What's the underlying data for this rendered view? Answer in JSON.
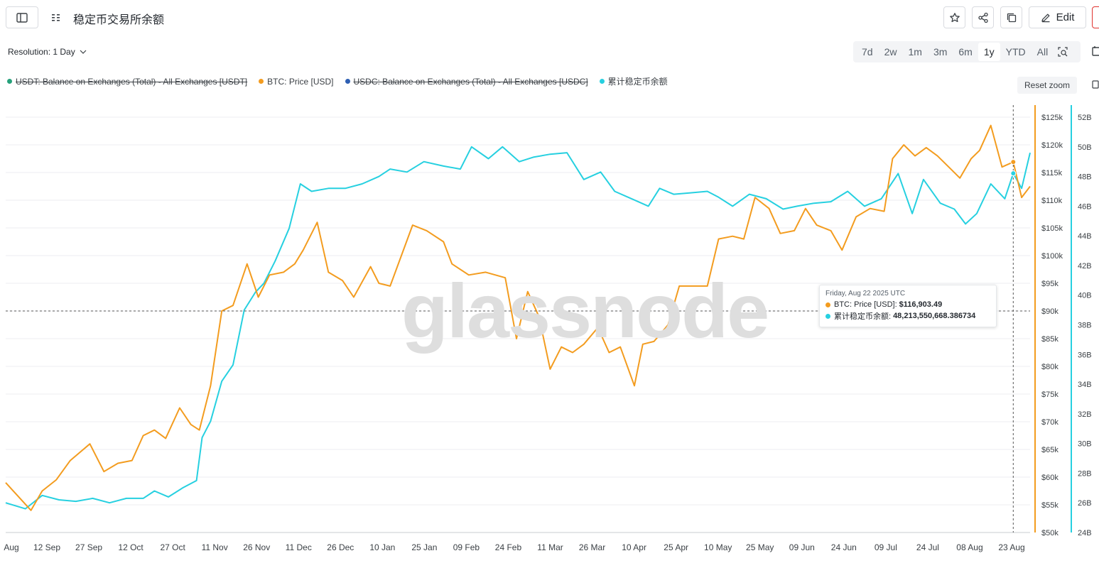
{
  "header": {
    "title": "稳定币交易所余额",
    "edit_label": "Edit",
    "icons": [
      "sidebar-toggle-icon",
      "drag-handle-icon",
      "star-icon",
      "share-icon",
      "duplicate-icon",
      "pencil-icon"
    ]
  },
  "controls": {
    "resolution_label": "Resolution: 1 Day",
    "ranges": [
      "7d",
      "2w",
      "1m",
      "3m",
      "6m",
      "1y",
      "YTD",
      "All"
    ],
    "active_range": "1y",
    "reset_zoom": "Reset zoom"
  },
  "legend": [
    {
      "label": "USDT: Balance on Exchanges (Total) - All Exchanges [USDT]",
      "color": "#26a17b",
      "hidden": true
    },
    {
      "label": "BTC: Price [USD]",
      "color": "#f39c1f",
      "hidden": false
    },
    {
      "label": "USDC: Balance on Exchanges (Total) - All Exchanges [USDC]",
      "color": "#2e5fb3",
      "hidden": true
    },
    {
      "label": "累计稳定币余额",
      "color": "#26d0e0",
      "hidden": false
    }
  ],
  "watermark": "glassnode",
  "tooltip": {
    "date": "Friday, Aug 22 2025 UTC",
    "rows": [
      {
        "label": "BTC: Price [USD]:",
        "value": "$116,903.49",
        "color": "#f39c1f"
      },
      {
        "label": "累计稳定币余额:",
        "value": "48,213,550,668.386734",
        "color": "#26d0e0"
      }
    ]
  },
  "chart_data": {
    "type": "line",
    "x_tick_labels": [
      "Aug",
      "12 Sep",
      "27 Sep",
      "12 Oct",
      "27 Oct",
      "11 Nov",
      "26 Nov",
      "11 Dec",
      "26 Dec",
      "10 Jan",
      "25 Jan",
      "09 Feb",
      "24 Feb",
      "11 Mar",
      "26 Mar",
      "10 Apr",
      "25 Apr",
      "10 May",
      "25 May",
      "09 Jun",
      "24 Jun",
      "09 Jul",
      "24 Jul",
      "08 Aug",
      "23 Aug"
    ],
    "x_range": [
      "2024-08-28",
      "2025-08-28"
    ],
    "y_left": {
      "label": "",
      "ticks": [
        "$50k",
        "$55k",
        "$60k",
        "$65k",
        "$70k",
        "$75k",
        "$80k",
        "$85k",
        "$90k",
        "$95k",
        "$100k",
        "$105k",
        "$110k",
        "$115k",
        "$120k",
        "$125k"
      ],
      "range": [
        50000,
        125000
      ],
      "color": "#f39c1f"
    },
    "y_right": {
      "label": "",
      "ticks": [
        "24B",
        "26B",
        "28B",
        "30B",
        "32B",
        "34B",
        "36B",
        "38B",
        "40B",
        "42B",
        "44B",
        "46B",
        "48B",
        "50B",
        "52B"
      ],
      "range": [
        24,
        52
      ],
      "color": "#26d0e0"
    },
    "grid": "horizontal",
    "series": [
      {
        "name": "BTC: Price [USD]",
        "axis": "left",
        "color": "#f39c1f",
        "points": [
          [
            "2024-08-28",
            59000
          ],
          [
            "2024-09-06",
            54000
          ],
          [
            "2024-09-10",
            57500
          ],
          [
            "2024-09-15",
            59500
          ],
          [
            "2024-09-20",
            63000
          ],
          [
            "2024-09-27",
            66000
          ],
          [
            "2024-10-02",
            61000
          ],
          [
            "2024-10-07",
            62500
          ],
          [
            "2024-10-12",
            63000
          ],
          [
            "2024-10-16",
            67500
          ],
          [
            "2024-10-20",
            68500
          ],
          [
            "2024-10-24",
            67000
          ],
          [
            "2024-10-29",
            72500
          ],
          [
            "2024-11-02",
            69500
          ],
          [
            "2024-11-05",
            68500
          ],
          [
            "2024-11-09",
            76500
          ],
          [
            "2024-11-13",
            90000
          ],
          [
            "2024-11-17",
            91000
          ],
          [
            "2024-11-22",
            98500
          ],
          [
            "2024-11-26",
            92500
          ],
          [
            "2024-11-30",
            96500
          ],
          [
            "2024-12-05",
            97000
          ],
          [
            "2024-12-09",
            98500
          ],
          [
            "2024-12-12",
            101000
          ],
          [
            "2024-12-17",
            106000
          ],
          [
            "2024-12-21",
            97000
          ],
          [
            "2024-12-26",
            95500
          ],
          [
            "2024-12-30",
            92500
          ],
          [
            "2025-01-05",
            98000
          ],
          [
            "2025-01-08",
            95000
          ],
          [
            "2025-01-12",
            94500
          ],
          [
            "2025-01-16",
            100000
          ],
          [
            "2025-01-20",
            105500
          ],
          [
            "2025-01-25",
            104500
          ],
          [
            "2025-01-31",
            102500
          ],
          [
            "2025-02-03",
            98500
          ],
          [
            "2025-02-09",
            96500
          ],
          [
            "2025-02-15",
            97000
          ],
          [
            "2025-02-22",
            96000
          ],
          [
            "2025-02-26",
            85000
          ],
          [
            "2025-03-02",
            93500
          ],
          [
            "2025-03-06",
            89000
          ],
          [
            "2025-03-10",
            79500
          ],
          [
            "2025-03-14",
            83500
          ],
          [
            "2025-03-18",
            82500
          ],
          [
            "2025-03-22",
            84000
          ],
          [
            "2025-03-27",
            87000
          ],
          [
            "2025-03-31",
            82500
          ],
          [
            "2025-04-04",
            83500
          ],
          [
            "2025-04-09",
            76500
          ],
          [
            "2025-04-12",
            84000
          ],
          [
            "2025-04-16",
            84500
          ],
          [
            "2025-04-21",
            87500
          ],
          [
            "2025-04-25",
            94500
          ],
          [
            "2025-04-30",
            94500
          ],
          [
            "2025-05-05",
            94500
          ],
          [
            "2025-05-09",
            103000
          ],
          [
            "2025-05-14",
            103500
          ],
          [
            "2025-05-18",
            103000
          ],
          [
            "2025-05-22",
            110500
          ],
          [
            "2025-05-27",
            108500
          ],
          [
            "2025-05-31",
            104000
          ],
          [
            "2025-06-05",
            104500
          ],
          [
            "2025-06-09",
            108500
          ],
          [
            "2025-06-13",
            105500
          ],
          [
            "2025-06-18",
            104500
          ],
          [
            "2025-06-22",
            101000
          ],
          [
            "2025-06-27",
            107000
          ],
          [
            "2025-07-02",
            108500
          ],
          [
            "2025-07-07",
            108000
          ],
          [
            "2025-07-10",
            117500
          ],
          [
            "2025-07-14",
            120000
          ],
          [
            "2025-07-18",
            118000
          ],
          [
            "2025-07-22",
            119500
          ],
          [
            "2025-07-26",
            118000
          ],
          [
            "2025-07-31",
            115500
          ],
          [
            "2025-08-03",
            114000
          ],
          [
            "2025-08-07",
            117500
          ],
          [
            "2025-08-10",
            119000
          ],
          [
            "2025-08-14",
            123500
          ],
          [
            "2025-08-18",
            116000
          ],
          [
            "2025-08-22",
            116903.49
          ],
          [
            "2025-08-25",
            110500
          ],
          [
            "2025-08-28",
            112500
          ]
        ]
      },
      {
        "name": "累计稳定币余额",
        "axis": "right",
        "color": "#26d0e0",
        "points_billions": [
          [
            "2024-08-28",
            26.0
          ],
          [
            "2024-09-04",
            25.6
          ],
          [
            "2024-09-10",
            26.5
          ],
          [
            "2024-09-16",
            26.2
          ],
          [
            "2024-09-22",
            26.1
          ],
          [
            "2024-09-28",
            26.3
          ],
          [
            "2024-10-04",
            26.0
          ],
          [
            "2024-10-10",
            26.3
          ],
          [
            "2024-10-16",
            26.3
          ],
          [
            "2024-10-20",
            26.8
          ],
          [
            "2024-10-25",
            26.4
          ],
          [
            "2024-10-30",
            27.0
          ],
          [
            "2024-11-04",
            27.5
          ],
          [
            "2024-11-06",
            30.4
          ],
          [
            "2024-11-09",
            31.5
          ],
          [
            "2024-11-13",
            34.2
          ],
          [
            "2024-11-17",
            35.3
          ],
          [
            "2024-11-21",
            39.0
          ],
          [
            "2024-11-25",
            40.2
          ],
          [
            "2024-11-28",
            40.8
          ],
          [
            "2024-12-02",
            42.3
          ],
          [
            "2024-12-07",
            44.5
          ],
          [
            "2024-12-11",
            47.5
          ],
          [
            "2024-12-15",
            47.0
          ],
          [
            "2024-12-21",
            47.2
          ],
          [
            "2024-12-27",
            47.2
          ],
          [
            "2025-01-02",
            47.5
          ],
          [
            "2025-01-08",
            48.0
          ],
          [
            "2025-01-12",
            48.5
          ],
          [
            "2025-01-18",
            48.3
          ],
          [
            "2025-01-24",
            49.0
          ],
          [
            "2025-01-31",
            48.7
          ],
          [
            "2025-02-06",
            48.5
          ],
          [
            "2025-02-10",
            50.0
          ],
          [
            "2025-02-16",
            49.2
          ],
          [
            "2025-02-21",
            50.0
          ],
          [
            "2025-02-27",
            49.0
          ],
          [
            "2025-03-04",
            49.3
          ],
          [
            "2025-03-10",
            49.5
          ],
          [
            "2025-03-16",
            49.6
          ],
          [
            "2025-03-22",
            47.8
          ],
          [
            "2025-03-28",
            48.3
          ],
          [
            "2025-04-02",
            47.0
          ],
          [
            "2025-04-08",
            46.5
          ],
          [
            "2025-04-14",
            46.0
          ],
          [
            "2025-04-18",
            47.2
          ],
          [
            "2025-04-23",
            46.8
          ],
          [
            "2025-04-29",
            46.9
          ],
          [
            "2025-05-05",
            47.0
          ],
          [
            "2025-05-09",
            46.6
          ],
          [
            "2025-05-14",
            46.0
          ],
          [
            "2025-05-20",
            46.8
          ],
          [
            "2025-05-26",
            46.5
          ],
          [
            "2025-06-01",
            45.8
          ],
          [
            "2025-06-06",
            46.0
          ],
          [
            "2025-06-12",
            46.2
          ],
          [
            "2025-06-18",
            46.3
          ],
          [
            "2025-06-24",
            47.0
          ],
          [
            "2025-06-30",
            46.0
          ],
          [
            "2025-07-06",
            46.5
          ],
          [
            "2025-07-12",
            48.2
          ],
          [
            "2025-07-17",
            45.5
          ],
          [
            "2025-07-21",
            47.8
          ],
          [
            "2025-07-27",
            46.2
          ],
          [
            "2025-08-01",
            45.8
          ],
          [
            "2025-08-05",
            44.8
          ],
          [
            "2025-08-09",
            45.5
          ],
          [
            "2025-08-14",
            47.5
          ],
          [
            "2025-08-19",
            46.5
          ],
          [
            "2025-08-22",
            48.21
          ],
          [
            "2025-08-25",
            47.2
          ],
          [
            "2025-08-28",
            49.6
          ]
        ]
      }
    ]
  }
}
